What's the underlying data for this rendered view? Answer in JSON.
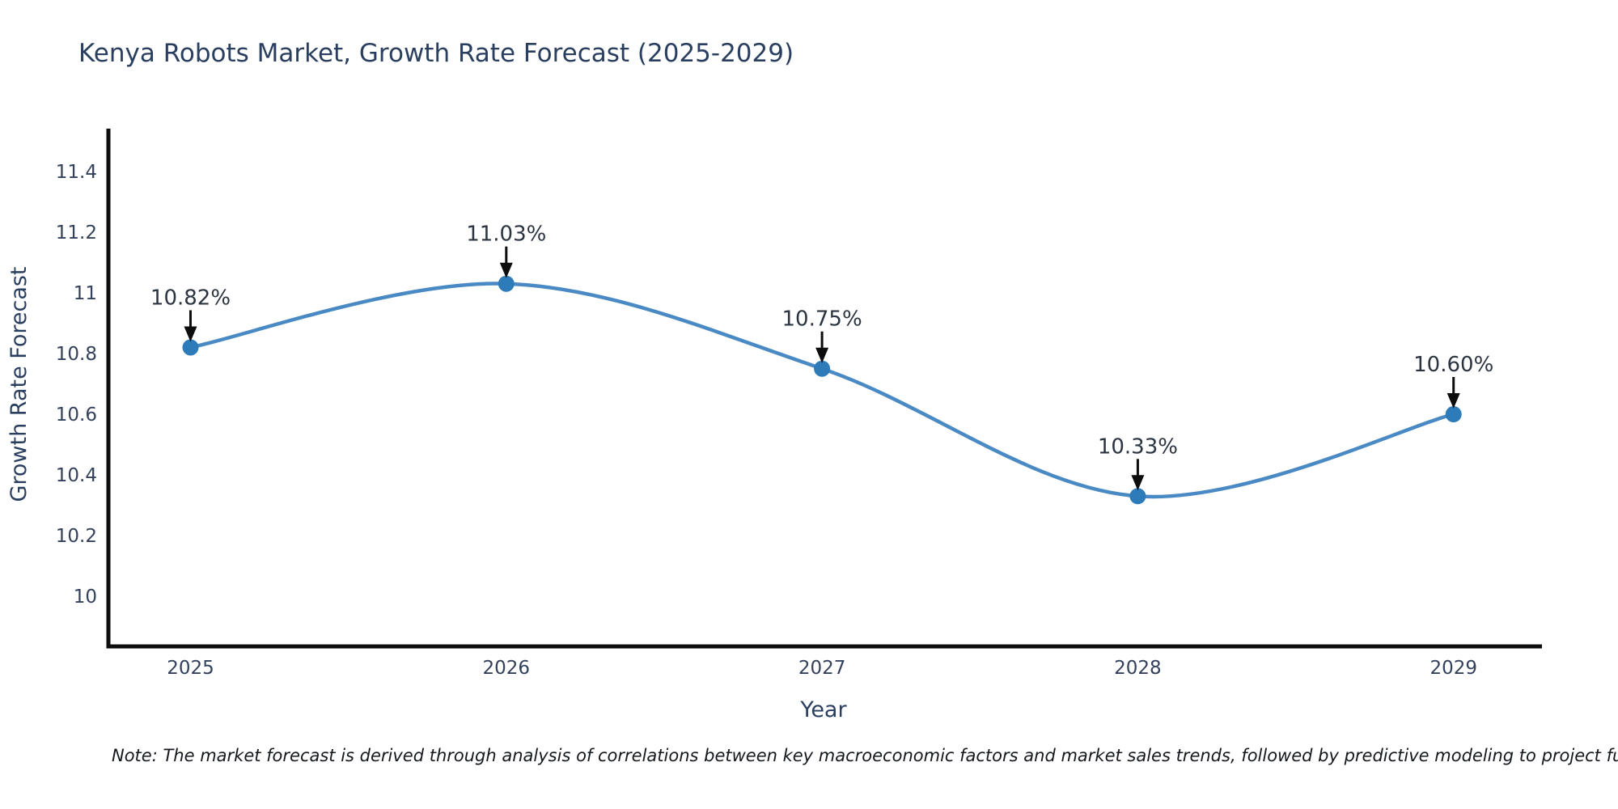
{
  "chart": {
    "note": "Note: The market forecast is derived through analysis of correlations between key macroeconomic factors and market sales trends, followed by predictive modeling to project future sal",
    "colors": {
      "line": "#4a8ac4",
      "marker": "#2d7bb9",
      "axis": "#0d0d0d",
      "arrow": "#0d0d0d",
      "heading_text": "#2a3f5f",
      "tick_text": "#33415c",
      "annotation_text": "#2b3440"
    }
  },
  "chart_data": {
    "type": "line",
    "title": "Kenya Robots Market, Growth Rate Forecast (2025-2029)",
    "xlabel": "Year",
    "ylabel": "Growth Rate Forecast",
    "x": [
      2025,
      2026,
      2027,
      2028,
      2029
    ],
    "xtick_labels": [
      "2025",
      "2026",
      "2027",
      "2028",
      "2029"
    ],
    "series": [
      {
        "name": "Growth Rate Forecast",
        "values": [
          10.82,
          11.03,
          10.75,
          10.33,
          10.6
        ]
      }
    ],
    "point_labels": [
      "10.82%",
      "11.03%",
      "10.75%",
      "10.33%",
      "10.60%"
    ],
    "yticks": [
      10,
      10.2,
      10.4,
      10.6,
      10.8,
      11,
      11.2,
      11.4
    ],
    "ytick_labels": [
      "10",
      "10.2",
      "10.4",
      "10.6",
      "10.8",
      "11",
      "11.2",
      "11.4"
    ],
    "xlim": [
      2024.74,
      2029.28
    ],
    "ylim": [
      9.835,
      11.541
    ],
    "line_shape": "spline",
    "grid": false,
    "legend": "none",
    "annotations_have_arrows": true
  }
}
